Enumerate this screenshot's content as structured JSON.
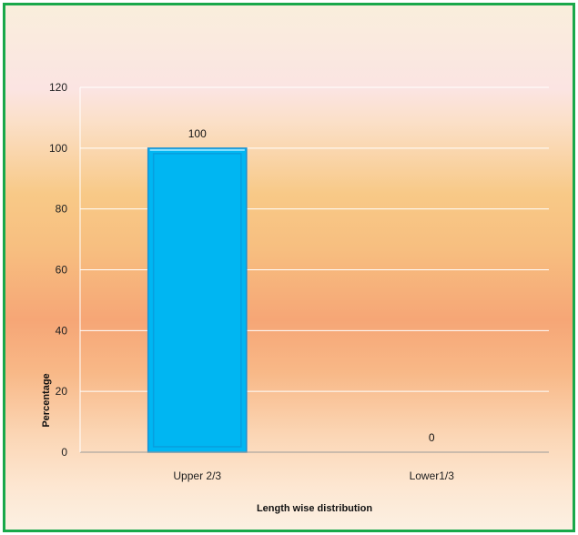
{
  "chart_data": {
    "type": "bar",
    "categories": [
      "Upper 2/3",
      "Lower1/3"
    ],
    "values": [
      100,
      0
    ],
    "data_labels": [
      "100",
      "0"
    ],
    "title": "",
    "xlabel": "Length wise distribution",
    "ylabel": "Percentage",
    "ylim": [
      0,
      120
    ],
    "yticks": [
      0,
      20,
      40,
      60,
      80,
      100,
      120
    ],
    "grid": true,
    "legend": "none",
    "colors": {
      "bar_fill": "#00b6f2",
      "bar_border": "#1e8fd0",
      "frame_border": "#19a84a",
      "gridline": "#ffffff"
    }
  }
}
